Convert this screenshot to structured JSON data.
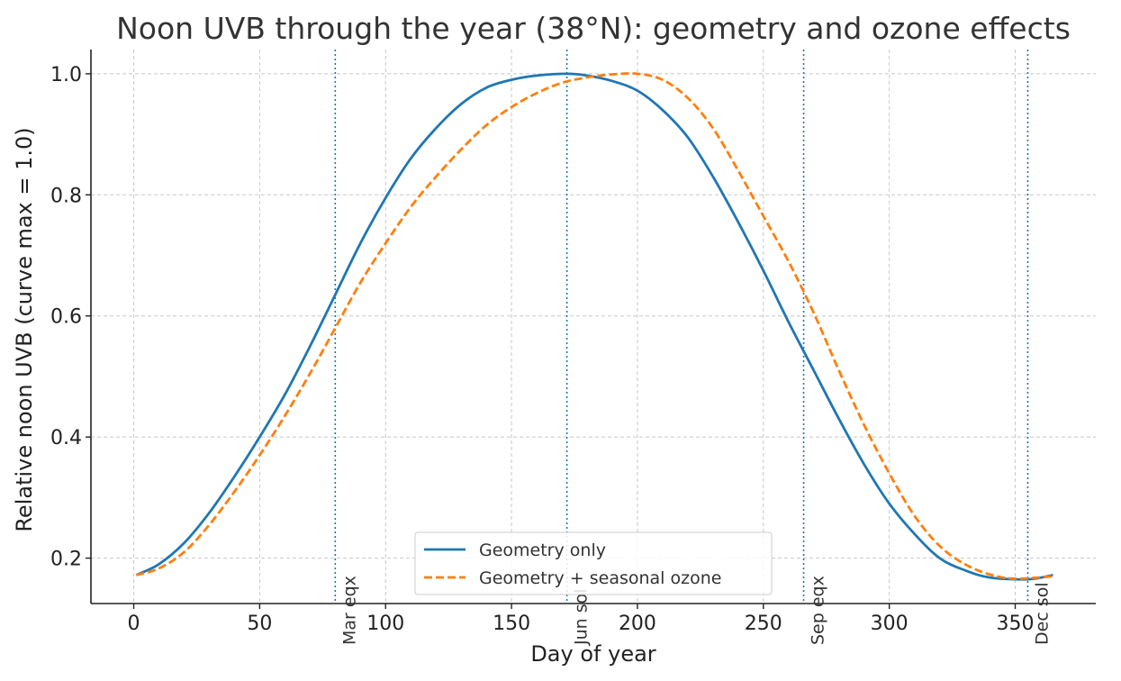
{
  "chart_data": {
    "type": "line",
    "title": "Noon UVB through the year (38°N): geometry and ozone effects",
    "xlabel": "Day of year",
    "ylabel": "Relative noon UVB (curve max = 1.0)",
    "xlim": [
      -17,
      382
    ],
    "ylim": [
      0.125,
      1.04
    ],
    "xticks": [
      0,
      50,
      100,
      150,
      200,
      250,
      300,
      350
    ],
    "yticks": [
      0.2,
      0.4,
      0.6,
      0.8,
      1.0
    ],
    "ytick_labels": [
      "0.2",
      "0.4",
      "0.6",
      "0.8",
      "1.0"
    ],
    "grid": true,
    "legend_position": "bottom-center",
    "series": [
      {
        "name": "Geometry only",
        "color": "#1f77b4",
        "style": "solid",
        "x": [
          1,
          10,
          20,
          30,
          40,
          50,
          60,
          70,
          80,
          90,
          100,
          110,
          120,
          130,
          140,
          150,
          160,
          172,
          180,
          190,
          200,
          210,
          220,
          230,
          240,
          250,
          260,
          270,
          280,
          290,
          300,
          310,
          320,
          330,
          340,
          355,
          365
        ],
        "values": [
          0.172,
          0.19,
          0.225,
          0.275,
          0.335,
          0.4,
          0.47,
          0.55,
          0.635,
          0.72,
          0.795,
          0.86,
          0.91,
          0.95,
          0.977,
          0.99,
          0.997,
          1.0,
          0.997,
          0.988,
          0.972,
          0.94,
          0.895,
          0.83,
          0.755,
          0.675,
          0.59,
          0.51,
          0.43,
          0.355,
          0.29,
          0.24,
          0.2,
          0.18,
          0.168,
          0.165,
          0.172
        ]
      },
      {
        "name": "Geometry + seasonal ozone",
        "color": "#ff7f0e",
        "style": "dashed",
        "x": [
          1,
          10,
          20,
          30,
          40,
          50,
          60,
          70,
          80,
          90,
          100,
          110,
          120,
          130,
          140,
          150,
          160,
          170,
          180,
          190,
          200,
          210,
          220,
          230,
          240,
          250,
          260,
          270,
          280,
          290,
          300,
          310,
          320,
          330,
          340,
          350,
          365
        ],
        "values": [
          0.172,
          0.183,
          0.21,
          0.255,
          0.31,
          0.37,
          0.435,
          0.505,
          0.58,
          0.655,
          0.72,
          0.78,
          0.83,
          0.875,
          0.915,
          0.945,
          0.968,
          0.985,
          0.994,
          0.999,
          1.0,
          0.99,
          0.96,
          0.91,
          0.84,
          0.765,
          0.69,
          0.605,
          0.51,
          0.42,
          0.34,
          0.27,
          0.22,
          0.19,
          0.173,
          0.166,
          0.17
        ]
      }
    ],
    "events": [
      {
        "x": 80,
        "label": "Mar eqx"
      },
      {
        "x": 172,
        "label": "Jun sol"
      },
      {
        "x": 266,
        "label": "Sep eqx"
      },
      {
        "x": 355,
        "label": "Dec sol"
      }
    ],
    "event_line_color": "#1f77b4"
  }
}
